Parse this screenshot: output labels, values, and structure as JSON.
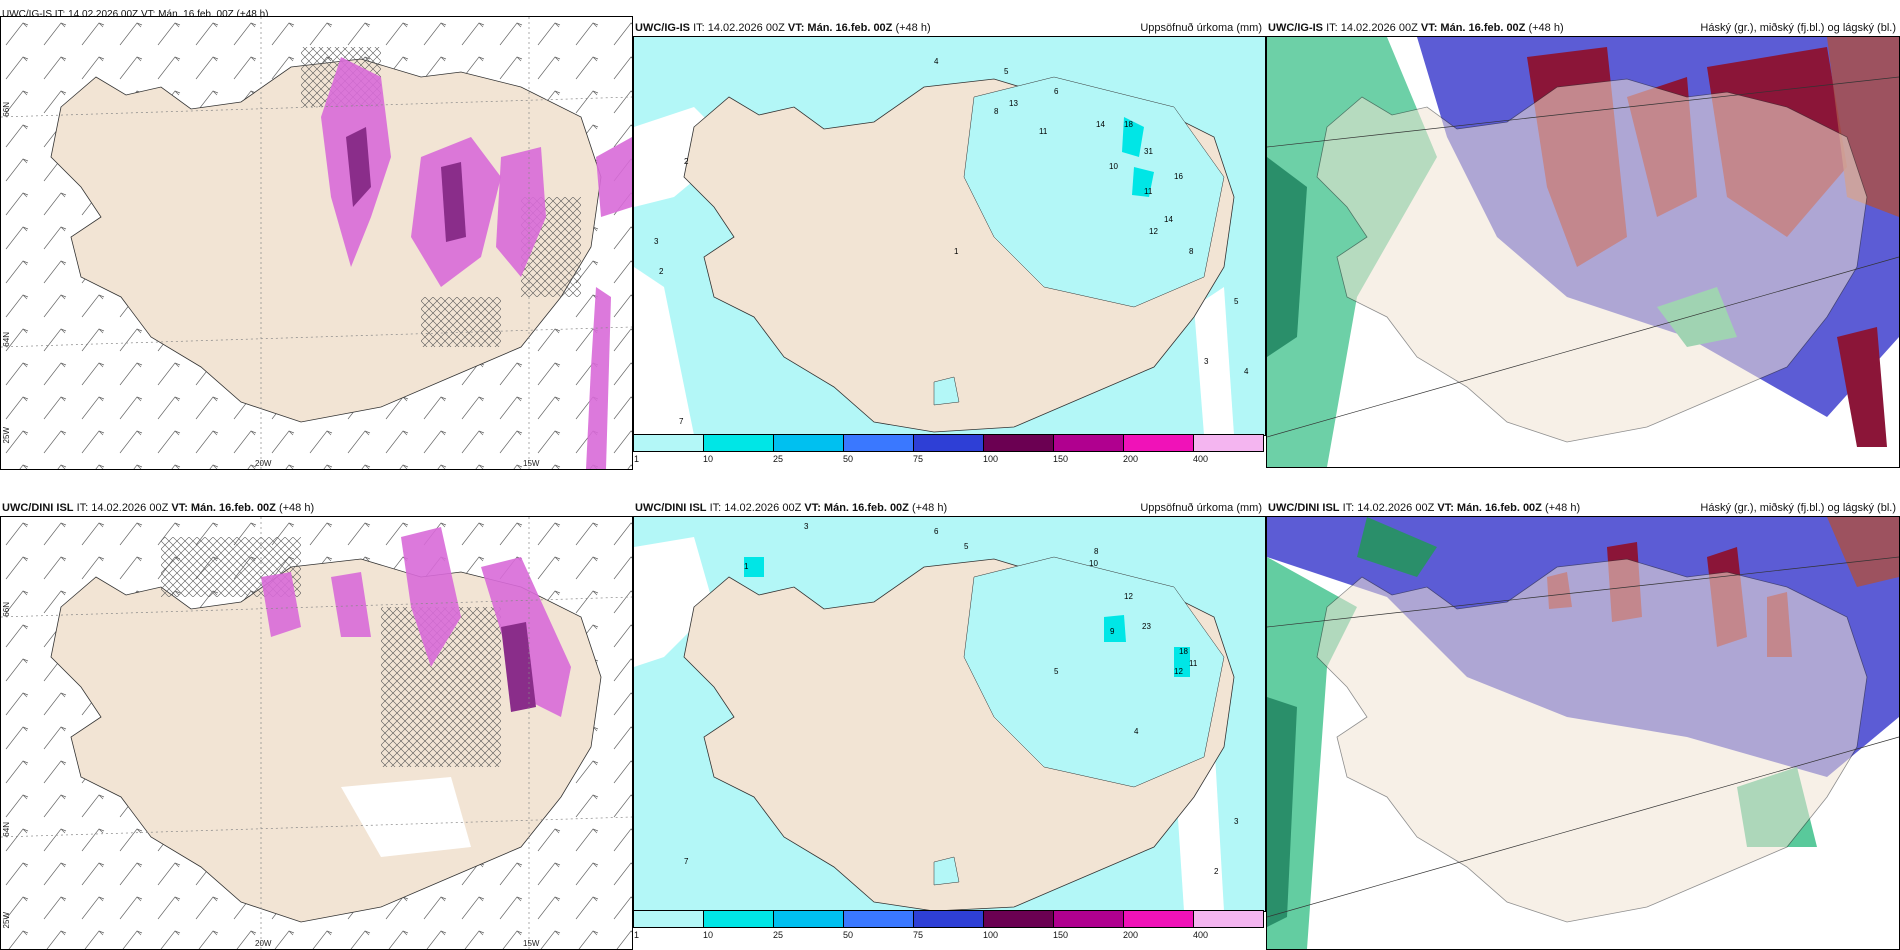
{
  "rows": [
    {
      "model": "UWC/IG-IS",
      "it": "IT: 14.02.2026 00Z",
      "vt_label": "VT:",
      "vt": "Mán. 16.feb. 00Z",
      "lead": "(+48 h)",
      "left_title": "UWC/IG-IS IT: 14.02.2026 00Z VT: Mán. 16.feb. 00Z (+48 h)"
    },
    {
      "model": "UWC/DINI ISL",
      "it": "IT: 14.02.2026 00Z",
      "vt_label": "VT:",
      "vt": "Mán. 16.feb. 00Z",
      "lead": "(+48 h)",
      "left_title": "UWC/DINI ISL IT: 14.02.2026 00Z VT: Mán. 16.feb. 00Z (+48 h)"
    }
  ],
  "precip_title": "Uppsöfnuð úrkoma (mm)",
  "cloud_title": "Háský (gr.), miðský (fj.bl.) og lágský (bl.)",
  "colorbar": {
    "labels": [
      "1",
      "10",
      "25",
      "50",
      "75",
      "100",
      "150",
      "200",
      "400"
    ],
    "colors": [
      "#b3f7f7",
      "#00e6e6",
      "#00c0f0",
      "#3a78ff",
      "#2e3fd6",
      "#6b0052",
      "#b0008f",
      "#f012b8",
      "#f4b5f0"
    ]
  },
  "axes": {
    "lon_20": "20W",
    "lon_15": "15W",
    "lon_25": "25W",
    "lat_66": "66N",
    "lat_64": "64N"
  },
  "colors": {
    "land": "#f2e4d4",
    "precip_light": "#b3f7f7",
    "precip_mid": "#00e6e6",
    "snow_magenta": "#d86ad8",
    "cloud_high": "#8b1538",
    "cloud_mid": "#4a4ad0",
    "cloud_low": "#3cc08a"
  },
  "precip_numbers_top": [
    "2",
    "4",
    "3",
    "5",
    "6",
    "8",
    "13",
    "11",
    "14",
    "18",
    "31",
    "16",
    "10",
    "11",
    "14",
    "12",
    "8",
    "5",
    "3",
    "4",
    "2",
    "1",
    "7"
  ],
  "precip_numbers_bottom": [
    "3",
    "6",
    "5",
    "8",
    "10",
    "12",
    "23",
    "18",
    "12",
    "11",
    "9",
    "5",
    "4",
    "2",
    "1",
    "7",
    "3"
  ]
}
